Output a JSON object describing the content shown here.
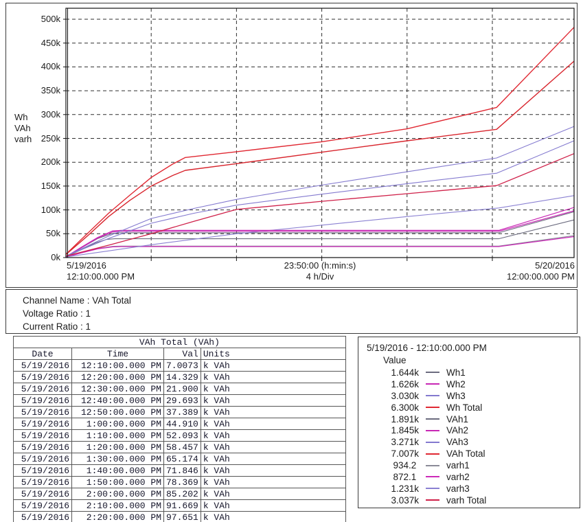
{
  "chart_data": {
    "type": "line",
    "title": "",
    "ylabel": "Wh VAh varh",
    "y_unit_lines": [
      "Wh",
      "VAh",
      "varh"
    ],
    "xlim": [
      0,
      23.8333
    ],
    "ylim": [
      0,
      500
    ],
    "x_unit": "hours after 5/19/2016 12:10:00 PM",
    "span_label": "23:50:00 (h:min:s)",
    "div_label": "4 h/Div",
    "grid": true,
    "yticks": {
      "values": [
        0,
        50,
        100,
        150,
        200,
        250,
        300,
        350,
        400,
        450,
        500
      ],
      "labels": [
        "0k",
        "50k",
        "100k",
        "150k",
        "200k",
        "250k",
        "300k",
        "350k",
        "400k",
        "450k",
        "500k"
      ]
    },
    "x_gridlines_hours": [
      4,
      8,
      12,
      16,
      20
    ],
    "x_start_label": [
      "5/19/2016",
      "12:10:00.000 PM"
    ],
    "x_end_label": [
      "5/20/2016",
      "12:00:00.000 PM"
    ],
    "series": [
      {
        "name": "varh1",
        "color": "#8a8a97",
        "width": 1.1,
        "points": [
          [
            0,
            0.93
          ],
          [
            0.7,
            10
          ],
          [
            1.5,
            19
          ],
          [
            2.2,
            23.5
          ],
          [
            2.6,
            24
          ],
          [
            20.3,
            24
          ],
          [
            23.83,
            46
          ]
        ]
      },
      {
        "name": "varh2",
        "color": "#cc29b8",
        "width": 1.3,
        "points": [
          [
            0,
            0.87
          ],
          [
            0.7,
            9.5
          ],
          [
            1.5,
            18.5
          ],
          [
            2.2,
            22.5
          ],
          [
            2.6,
            23
          ],
          [
            20.3,
            23
          ],
          [
            23.83,
            44
          ]
        ]
      },
      {
        "name": "Wh1",
        "color": "#6b6b7e",
        "width": 1.1,
        "points": [
          [
            0,
            1.6
          ],
          [
            0.7,
            16
          ],
          [
            1.4,
            31
          ],
          [
            1.9,
            38
          ],
          [
            2.3,
            39.5
          ],
          [
            20.3,
            39.5
          ],
          [
            23.83,
            79
          ]
        ]
      },
      {
        "name": "VAh1",
        "color": "#6b6b7e",
        "width": 1.1,
        "points": [
          [
            0,
            1.9
          ],
          [
            0.7,
            20
          ],
          [
            1.5,
            40
          ],
          [
            2.2,
            51
          ],
          [
            2.6,
            52
          ],
          [
            20.3,
            52
          ],
          [
            23.83,
            96
          ]
        ]
      },
      {
        "name": "varh3",
        "color": "#8a80d2",
        "width": 1.1,
        "points": [
          [
            0,
            1.23
          ],
          [
            2,
            14
          ],
          [
            4,
            27
          ],
          [
            6,
            38.5
          ],
          [
            8,
            50
          ],
          [
            12,
            68
          ],
          [
            16,
            86
          ],
          [
            20.3,
            104
          ],
          [
            23.83,
            130
          ]
        ]
      },
      {
        "name": "Wh2",
        "color": "#c827b4",
        "width": 1.2,
        "points": [
          [
            0,
            1.63
          ],
          [
            0.7,
            20
          ],
          [
            1.5,
            41
          ],
          [
            2.2,
            54
          ],
          [
            2.6,
            55
          ],
          [
            20.3,
            55
          ],
          [
            23.83,
            98
          ]
        ]
      },
      {
        "name": "VAh2",
        "color": "#c827b4",
        "width": 1.2,
        "points": [
          [
            0,
            1.85
          ],
          [
            0.7,
            21
          ],
          [
            1.5,
            42.5
          ],
          [
            2.2,
            56
          ],
          [
            2.6,
            57
          ],
          [
            20.3,
            57
          ],
          [
            23.83,
            105
          ]
        ]
      },
      {
        "name": "Wh3",
        "color": "#8379cf",
        "width": 1.1,
        "points": [
          [
            0,
            3.03
          ],
          [
            2,
            40
          ],
          [
            4,
            72
          ],
          [
            6,
            93
          ],
          [
            8,
            110
          ],
          [
            12,
            133
          ],
          [
            16,
            155
          ],
          [
            20.2,
            177
          ],
          [
            23.83,
            245
          ]
        ]
      },
      {
        "name": "VAh3",
        "color": "#8379cf",
        "width": 1.1,
        "points": [
          [
            0,
            3.27
          ],
          [
            2,
            45
          ],
          [
            4,
            82
          ],
          [
            6,
            103
          ],
          [
            8,
            122
          ],
          [
            12,
            152
          ],
          [
            16,
            180
          ],
          [
            20.2,
            209
          ],
          [
            23.83,
            275
          ]
        ]
      },
      {
        "name": "varh Total",
        "color": "#cf1f48",
        "width": 1.3,
        "points": [
          [
            0,
            3.04
          ],
          [
            2,
            26
          ],
          [
            4,
            50
          ],
          [
            6,
            76
          ],
          [
            8,
            101
          ],
          [
            12,
            118
          ],
          [
            16,
            134
          ],
          [
            20.2,
            151
          ],
          [
            23.83,
            218
          ]
        ]
      },
      {
        "name": "Wh Total",
        "color": "#d8242c",
        "width": 1.4,
        "points": [
          [
            0,
            6.3
          ],
          [
            1,
            45
          ],
          [
            2,
            86
          ],
          [
            3,
            120
          ],
          [
            4,
            150
          ],
          [
            5,
            172
          ],
          [
            5.6,
            183
          ],
          [
            8,
            197
          ],
          [
            12,
            221
          ],
          [
            16,
            245
          ],
          [
            20.2,
            269
          ],
          [
            23.83,
            412
          ]
        ]
      },
      {
        "name": "VAh Total",
        "color": "#e02832",
        "width": 1.4,
        "points": [
          [
            0,
            7.0
          ],
          [
            1,
            50
          ],
          [
            2,
            93
          ],
          [
            3,
            131
          ],
          [
            4,
            168
          ],
          [
            5,
            196
          ],
          [
            5.6,
            210
          ],
          [
            8,
            222
          ],
          [
            12,
            243
          ],
          [
            16,
            270
          ],
          [
            20.2,
            315
          ],
          [
            23.83,
            483
          ]
        ]
      }
    ]
  },
  "chart": {
    "xlab_left_1": "5/19/2016",
    "xlab_left_2": "12:10:00.000 PM",
    "xlab_center_1": "23:50:00 (h:min:s)",
    "xlab_center_2": "4 h/Div",
    "xlab_right_1": "5/20/2016",
    "xlab_right_2": "12:00:00.000 PM"
  },
  "channel_info": {
    "channel_name": "Channel Name : VAh Total",
    "voltage_ratio": "Voltage Ratio : 1",
    "current_ratio": "Current Ratio : 1"
  },
  "table": {
    "title": "VAh Total (VAh)",
    "columns": [
      "Date",
      "Time",
      "Val",
      "Units"
    ],
    "rows": [
      {
        "date": "5/19/2016",
        "time": "12:10:00.000 PM",
        "val": "7.0073",
        "units": "k VAh"
      },
      {
        "date": "5/19/2016",
        "time": "12:20:00.000 PM",
        "val": "14.329",
        "units": "k VAh"
      },
      {
        "date": "5/19/2016",
        "time": "12:30:00.000 PM",
        "val": "21.900",
        "units": "k VAh"
      },
      {
        "date": "5/19/2016",
        "time": "12:40:00.000 PM",
        "val": "29.693",
        "units": "k VAh"
      },
      {
        "date": "5/19/2016",
        "time": "12:50:00.000 PM",
        "val": "37.389",
        "units": "k VAh"
      },
      {
        "date": "5/19/2016",
        "time": "1:00:00.000 PM",
        "val": "44.910",
        "units": "k VAh"
      },
      {
        "date": "5/19/2016",
        "time": "1:10:00.000 PM",
        "val": "52.093",
        "units": "k VAh"
      },
      {
        "date": "5/19/2016",
        "time": "1:20:00.000 PM",
        "val": "58.457",
        "units": "k VAh"
      },
      {
        "date": "5/19/2016",
        "time": "1:30:00.000 PM",
        "val": "65.174",
        "units": "k VAh"
      },
      {
        "date": "5/19/2016",
        "time": "1:40:00.000 PM",
        "val": "71.846",
        "units": "k VAh"
      },
      {
        "date": "5/19/2016",
        "time": "1:50:00.000 PM",
        "val": "78.369",
        "units": "k VAh"
      },
      {
        "date": "5/19/2016",
        "time": "2:00:00.000 PM",
        "val": "85.202",
        "units": "k VAh"
      },
      {
        "date": "5/19/2016",
        "time": "2:10:00.000 PM",
        "val": "91.669",
        "units": "k VAh"
      },
      {
        "date": "5/19/2016",
        "time": "2:20:00.000 PM",
        "val": "97.651",
        "units": "k VAh"
      }
    ]
  },
  "legend": {
    "title": "5/19/2016 - 12:10:00.000 PM",
    "value_header": "Value",
    "items": [
      {
        "value": "1.644k",
        "label": "Wh1",
        "color": "#6b6b7e"
      },
      {
        "value": "1.626k",
        "label": "Wh2",
        "color": "#c827b4"
      },
      {
        "value": "3.030k",
        "label": "Wh3",
        "color": "#8379cf"
      },
      {
        "value": "6.300k",
        "label": "Wh Total",
        "color": "#e02832"
      },
      {
        "value": "1.891k",
        "label": "VAh1",
        "color": "#6b6b7e"
      },
      {
        "value": "1.845k",
        "label": "VAh2",
        "color": "#c827b4"
      },
      {
        "value": "3.271k",
        "label": "VAh3",
        "color": "#8379cf"
      },
      {
        "value": "7.007k",
        "label": "VAh Total",
        "color": "#e02832"
      },
      {
        "value": "934.2 ",
        "label": "varh1",
        "color": "#8a8a97"
      },
      {
        "value": "872.1 ",
        "label": "varh2",
        "color": "#cc29b8"
      },
      {
        "value": "1.231k",
        "label": "varh3",
        "color": "#8a80d2"
      },
      {
        "value": "3.037k",
        "label": "varh Total",
        "color": "#cf1f48"
      }
    ]
  },
  "colors": {
    "grid": "#2e2e2e",
    "panel_border": "#3a3a3a",
    "table_border": "#555555"
  }
}
